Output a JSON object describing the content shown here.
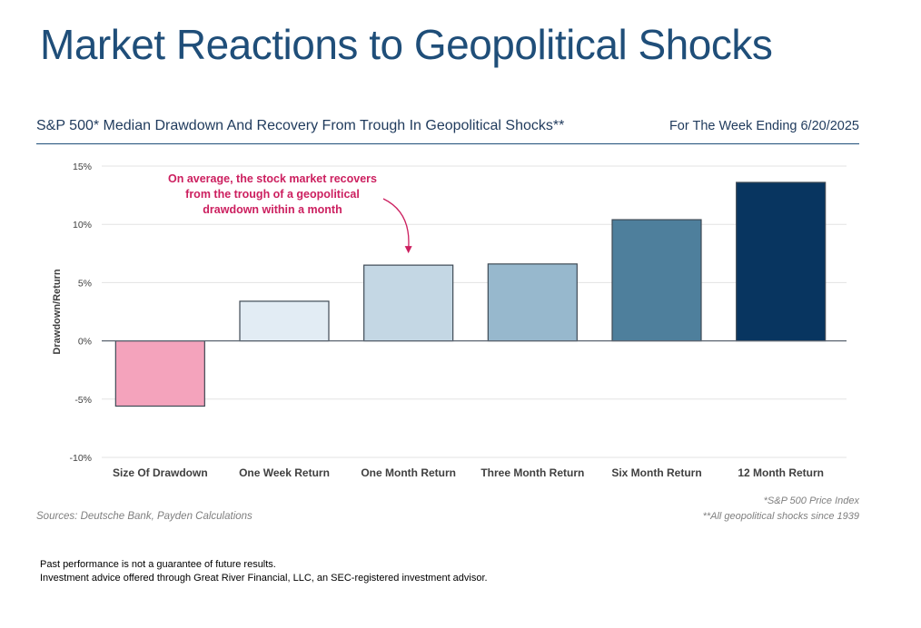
{
  "slide": {
    "title": "Market Reactions to Geopolitical Shocks"
  },
  "chart_header": {
    "title": "S&P 500* Median Drawdown And Recovery From Trough In Geopolitical Shocks**",
    "date": "For The Week Ending 6/20/2025"
  },
  "chart_data": {
    "type": "bar",
    "categories": [
      "Size Of Drawdown",
      "One Week Return",
      "One Month Return",
      "Three Month Return",
      "Six Month Return",
      "12 Month Return"
    ],
    "values": [
      -5.6,
      3.4,
      6.5,
      6.6,
      10.4,
      13.6
    ],
    "colors": [
      "#f4a3bc",
      "#e2ecf4",
      "#c4d7e4",
      "#97b8cd",
      "#4e7f9c",
      "#083560"
    ],
    "ylabel": "Drawdown/Return",
    "ylim": [
      -10,
      15
    ],
    "yticks": [
      15,
      10,
      5,
      0,
      -5,
      -10
    ],
    "ytick_labels": [
      "15%",
      "10%",
      "5%",
      "0%",
      "-5%",
      "-10%"
    ],
    "grid": true,
    "annotation": {
      "lines": [
        "On average, the stock market recovers",
        "from the trough of a geopolitical",
        "drawdown within a month"
      ],
      "color": "#cc1f5f",
      "target_category": "One Month Return"
    }
  },
  "notes": {
    "source": "Sources: Deutsche Bank, Payden Calculations",
    "footnote1": "*S&P 500 Price Index",
    "footnote2": "**All geopolitical shocks since 1939"
  },
  "disclaimer": {
    "line1": "Past performance is not a guarantee of future results.",
    "line2": "Investment advice offered through Great River Financial, LLC, an SEC-registered investment advisor."
  }
}
